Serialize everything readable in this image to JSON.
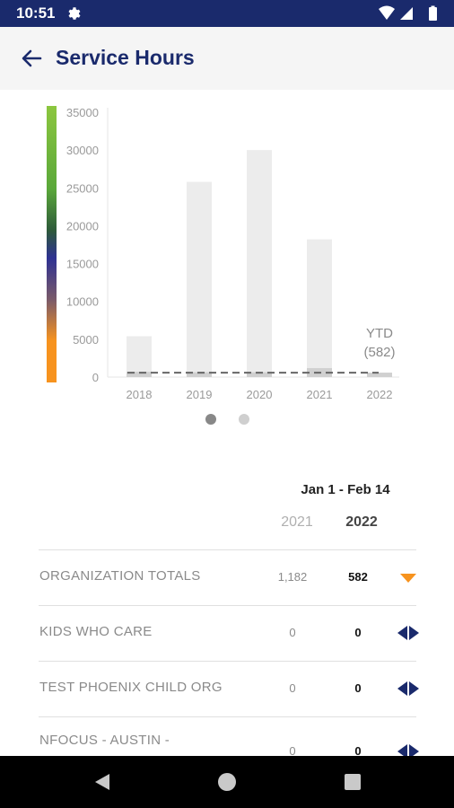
{
  "status_bar": {
    "time": "10:51"
  },
  "app_bar": {
    "title": "Service Hours"
  },
  "chart_data": {
    "type": "bar",
    "categories": [
      "2018",
      "2019",
      "2020",
      "2021",
      "2022"
    ],
    "series": [
      {
        "values": [
          5400,
          25800,
          30000,
          18200,
          582
        ]
      },
      {
        "values": [
          700,
          640,
          640,
          1182,
          582
        ]
      }
    ],
    "ylim": [
      0,
      35000
    ],
    "yticks": [
      "0",
      "5000",
      "10000",
      "15000",
      "20000",
      "25000",
      "30000",
      "35000"
    ],
    "reference_line": 582,
    "annotation": {
      "line1": "YTD",
      "line2": "(582)"
    },
    "grid": false,
    "colors": {
      "bar": "#ececec",
      "bar_inner": "#d0d0d0",
      "axis_text": "#9a9a9a",
      "dash": "#666666"
    }
  },
  "pager": {
    "pages": 2,
    "active": 0
  },
  "table": {
    "period": "Jan 1 - Feb 14",
    "col_2021": "2021",
    "col_2022": "2022",
    "rows": [
      {
        "label": "ORGANIZATION TOTALS",
        "v2021": "1,182",
        "v2022": "582",
        "trend": "down-triangle-icon",
        "trend_color": "#f7931e"
      },
      {
        "label": "KIDS WHO CARE",
        "v2021": "0",
        "v2022": "0",
        "trend": "neutral-arrows-icon",
        "trend_color": "#1a2a6c"
      },
      {
        "label": "TEST PHOENIX CHILD ORG",
        "v2021": "0",
        "v2022": "0",
        "trend": "neutral-arrows-icon",
        "trend_color": "#1a2a6c"
      },
      {
        "label": "NFOCUS - AUSTIN -",
        "v2021": "0",
        "v2022": "0",
        "trend": "neutral-arrows-icon",
        "trend_color": "#1a2a6c"
      }
    ]
  },
  "colors": {
    "primary": "#1a2a6c",
    "accent": "#f7931e",
    "gradient_top": "#8cc63f",
    "gradient_mid": "#2e3192",
    "gradient_bottom": "#f7931e"
  }
}
